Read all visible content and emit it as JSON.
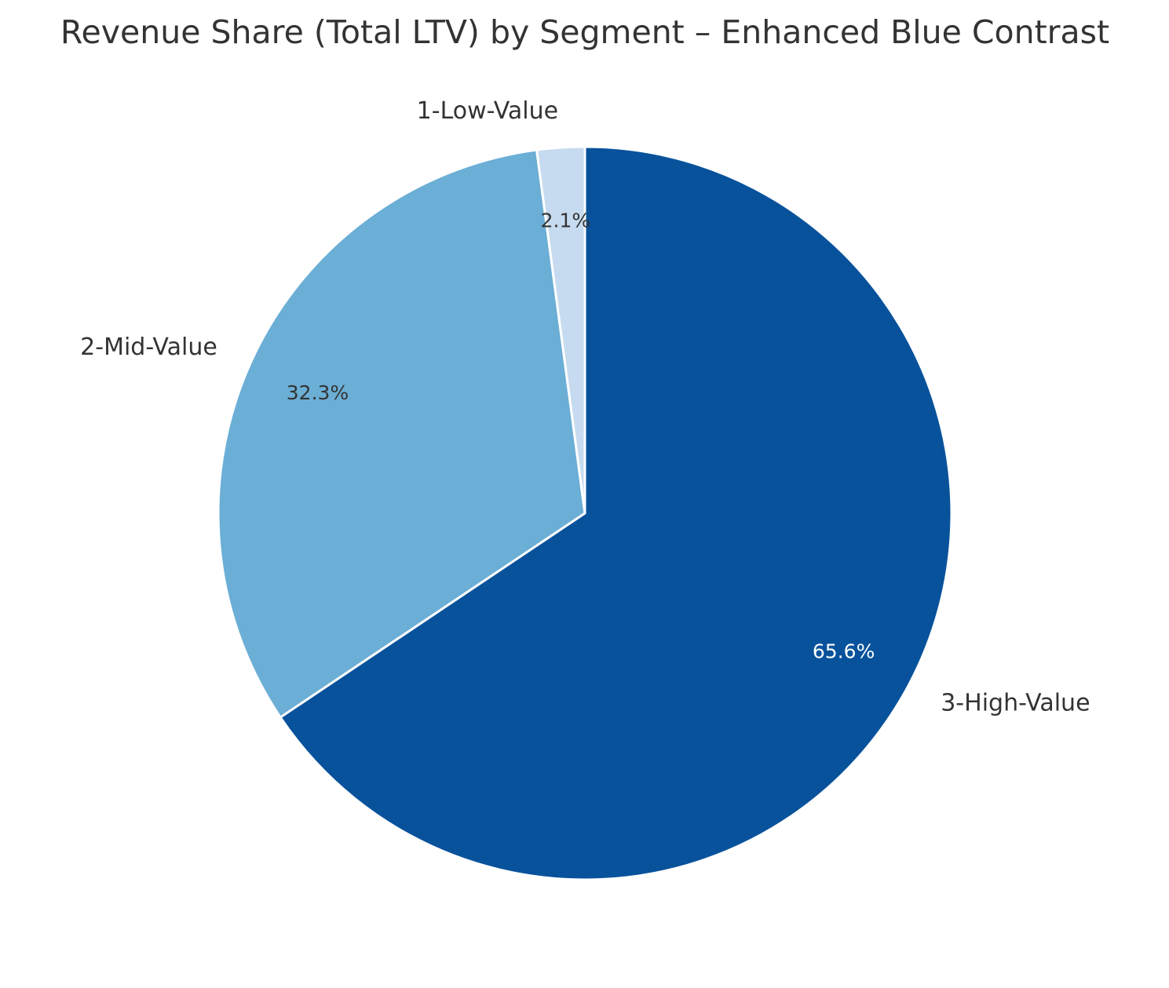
{
  "chart_data": {
    "type": "pie",
    "title": "Revenue Share (Total LTV) by Segment – Enhanced Blue Contrast",
    "start_angle_deg": 90,
    "direction": "clockwise",
    "slices": [
      {
        "label": "3-High-Value",
        "percent": 65.6,
        "pct_label": "65.6%",
        "color": "#08529c",
        "pct_text_color": "#ffffff"
      },
      {
        "label": "2-Mid-Value",
        "percent": 32.3,
        "pct_label": "32.3%",
        "color": "#6baed6",
        "pct_text_color": "#333333"
      },
      {
        "label": "1-Low-Value",
        "percent": 2.1,
        "pct_label": "2.1%",
        "color": "#c6dbef",
        "pct_text_color": "#333333"
      }
    ]
  }
}
